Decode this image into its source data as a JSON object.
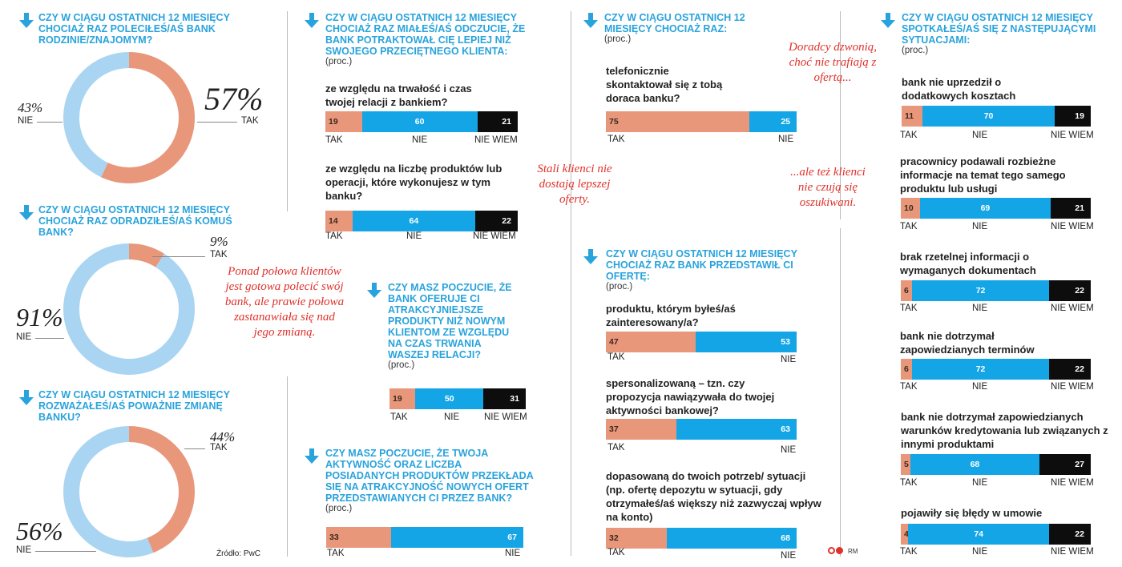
{
  "colors": {
    "tak": "#e8977b",
    "nie": "#14a5e6",
    "nie_ring": "#a9d5f2",
    "nie_wiem": "#0d0d0d",
    "title": "#29a3dc",
    "note": "#e0312b"
  },
  "source": "Źródło: PwC",
  "credit": "RM",
  "labels": {
    "tak": "TAK",
    "nie": "NIE",
    "nie_wiem": "NIE WIEM",
    "proc": "(proc.)"
  },
  "donuts": [
    {
      "title": "CZY W CIĄGU OSTATNICH 12 MIESIĘCY CHOCIAŻ RAZ POLECIŁEŚ/AŚ BANK RODZINIE/ZNAJOMYM?",
      "tak_pct": "57%",
      "nie_pct": "43%"
    },
    {
      "title": "CZY W CIĄGU OSTATNICH 12 MIESIĘCY CHOCIAŻ RAZ ODRADZIŁEŚ/AŚ KOMUŚ BANK?",
      "tak_pct": "9%",
      "nie_pct": "91%"
    },
    {
      "title": "CZY W CIĄGU OSTATNICH 12 MIESIĘCY ROZWAŻAŁEŚ/AŚ POWAŻNIE ZMIANĘ BANKU?",
      "tak_pct": "44%",
      "nie_pct": "56%"
    }
  ],
  "notes": {
    "n1": "Ponad połowa klientów jest gotowa polecić swój bank, ale prawie połowa zastanawiała się nad jego zmianą.",
    "n2": "Stali klienci nie dostają lepszej oferty.",
    "n3": "Doradcy dzwonią, choć nie trafiają z ofertą...",
    "n4": "...ale też klienci nie czują się oszukiwani."
  },
  "q2": {
    "title": "CZY W CIĄGU OSTATNICH 12 MIESIĘCY CHOCIAŻ RAZ MIAŁEŚ/AŚ ODCZUCIE, ŻE BANK POTRAKTOWAŁ CIĘ LEPIEJ NIŻ SWOJEGO PRZECIĘTNEGO KLIENTA:",
    "s1": "ze względu na trwałość i czas twojej relacji z bankiem?",
    "s2": "ze względu na liczbę produktów lub operacji, które wykonujesz w tym banku?"
  },
  "q3": {
    "title": "CZY MASZ POCZUCIE, ŻE BANK OFERUJE CI ATRAKCYJNIEJSZE PRODUKTY NIŻ NOWYM KLIENTOM ZE WZGLĘDU NA CZAS TRWANIA WASZEJ RELACJI?"
  },
  "q4": {
    "title": "CZY MASZ POCZUCIE, ŻE TWOJA AKTYWNOŚĆ ORAZ LICZBA POSIADANYCH PRODUKTÓW PRZEKŁADA SIĘ NA ATRAKCYJNOŚĆ NOWYCH OFERT PRZEDSTAWIANYCH CI PRZEZ BANK?"
  },
  "q5": {
    "title": "CZY W CIĄGU OSTATNICH 12 MIESIĘCY CHOCIAŻ RAZ:",
    "s1": "telefonicznie skontaktował się z tobą doraca banku?"
  },
  "q6": {
    "title": "CZY W CIĄGU OSTATNICH 12 MIESIĘCY CHOCIAŻ RAZ BANK PRZEDSTAWIŁ CI OFERTĘ:",
    "s1": "produktu, którym byłeś/aś zainteresowany/a?",
    "s2": "spersonalizowaną – tzn. czy propozycja nawiązywała do twojej aktywności bankowej?",
    "s3": "dopasowaną do twoich potrzeb/ sytuacji (np. ofertę depozytu w sytuacji, gdy otrzymałeś/aś większy niż zazwyczaj wpływ na konto)"
  },
  "q7": {
    "title": "CZY W CIĄGU OSTATNICH 12 MIESIĘCY SPOTKAŁEŚ/AŚ SIĘ Z NASTĘPUJĄCYMI SYTUACJAMI:",
    "s1": "bank nie uprzedził o dodatkowych kosztach",
    "s2": "pracownicy podawali rozbieżne informacje na temat tego samego produktu lub usługi",
    "s3": "brak rzetelnej informacji o wymaganych dokumentach",
    "s4": "bank nie dotrzymał zapowiedzianych terminów",
    "s5": "bank nie dotrzymał zapowiedzianych warunków kredytowania lub związanych z innymi produktami",
    "s6": "pojawiły się błędy w umowie"
  },
  "chart_data": [
    {
      "type": "pie",
      "id": "donut1",
      "categories": [
        "TAK",
        "NIE"
      ],
      "values": [
        57,
        43
      ]
    },
    {
      "type": "pie",
      "id": "donut2",
      "categories": [
        "TAK",
        "NIE"
      ],
      "values": [
        9,
        91
      ]
    },
    {
      "type": "pie",
      "id": "donut3",
      "categories": [
        "TAK",
        "NIE"
      ],
      "values": [
        44,
        56
      ]
    },
    {
      "type": "bar",
      "id": "b_q2a",
      "categories": [
        "TAK",
        "NIE",
        "NIE WIEM"
      ],
      "values": [
        19,
        60,
        21
      ]
    },
    {
      "type": "bar",
      "id": "b_q2b",
      "categories": [
        "TAK",
        "NIE",
        "NIE WIEM"
      ],
      "values": [
        14,
        64,
        22
      ]
    },
    {
      "type": "bar",
      "id": "b_q3",
      "categories": [
        "TAK",
        "NIE",
        "NIE WIEM"
      ],
      "values": [
        19,
        50,
        31
      ]
    },
    {
      "type": "bar",
      "id": "b_q4",
      "categories": [
        "TAK",
        "NIE"
      ],
      "values": [
        33,
        67
      ]
    },
    {
      "type": "bar",
      "id": "b_q5",
      "categories": [
        "TAK",
        "NIE"
      ],
      "values": [
        75,
        25
      ]
    },
    {
      "type": "bar",
      "id": "b_q6a",
      "categories": [
        "TAK",
        "NIE"
      ],
      "values": [
        47,
        53
      ]
    },
    {
      "type": "bar",
      "id": "b_q6b",
      "categories": [
        "TAK",
        "NIE"
      ],
      "values": [
        37,
        63
      ]
    },
    {
      "type": "bar",
      "id": "b_q6c",
      "categories": [
        "TAK",
        "NIE"
      ],
      "values": [
        32,
        68
      ]
    },
    {
      "type": "bar",
      "id": "b_q7a",
      "categories": [
        "TAK",
        "NIE",
        "NIE WIEM"
      ],
      "values": [
        11,
        70,
        19
      ]
    },
    {
      "type": "bar",
      "id": "b_q7b",
      "categories": [
        "TAK",
        "NIE",
        "NIE WIEM"
      ],
      "values": [
        10,
        69,
        21
      ]
    },
    {
      "type": "bar",
      "id": "b_q7c",
      "categories": [
        "TAK",
        "NIE",
        "NIE WIEM"
      ],
      "values": [
        6,
        72,
        22
      ]
    },
    {
      "type": "bar",
      "id": "b_q7d",
      "categories": [
        "TAK",
        "NIE",
        "NIE WIEM"
      ],
      "values": [
        6,
        72,
        22
      ]
    },
    {
      "type": "bar",
      "id": "b_q7e",
      "categories": [
        "TAK",
        "NIE",
        "NIE WIEM"
      ],
      "values": [
        5,
        68,
        27
      ]
    },
    {
      "type": "bar",
      "id": "b_q7f",
      "categories": [
        "TAK",
        "NIE",
        "NIE WIEM"
      ],
      "values": [
        4,
        74,
        22
      ]
    }
  ]
}
